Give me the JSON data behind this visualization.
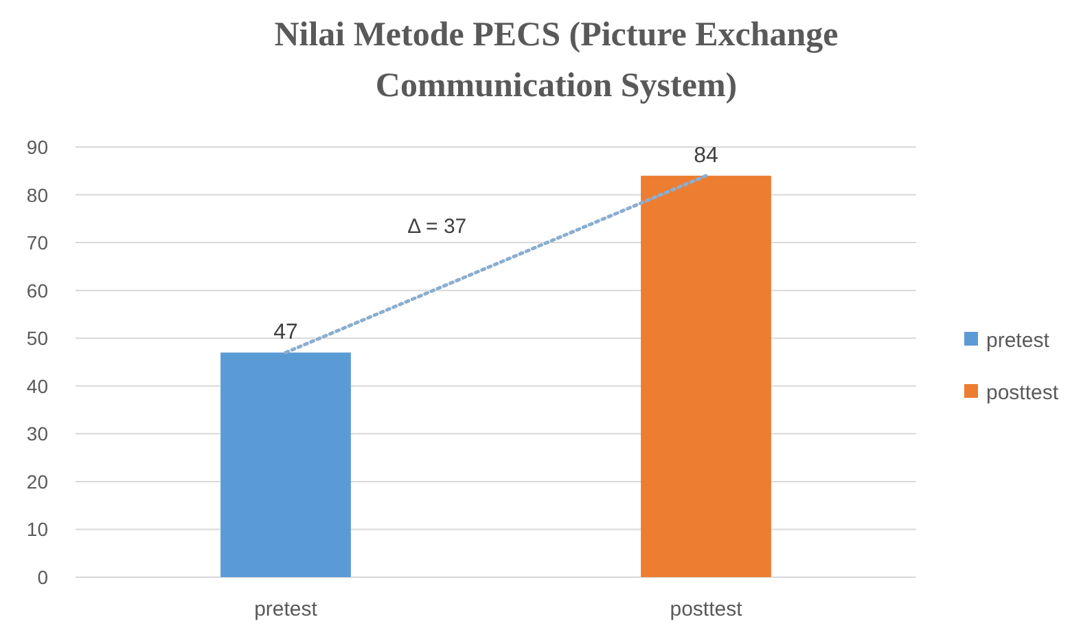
{
  "chart_data": {
    "type": "bar",
    "title": "Nilai Metode PECS (Picture Exchange Communication System)",
    "categories": [
      "pretest",
      "posttest"
    ],
    "stacked": true,
    "series": [
      {
        "name": "pretest",
        "color": "#5b9bd5",
        "values": [
          47,
          null
        ],
        "value_labels": [
          "47",
          null
        ]
      },
      {
        "name": "posttest",
        "color": "#ed7d31",
        "values": [
          null,
          84
        ],
        "value_labels": [
          null,
          "84"
        ]
      },
      {
        "type": "line",
        "values": [
          47,
          84
        ],
        "color": "#8aaed0",
        "line_style": "dotted",
        "marker": "none"
      }
    ],
    "ylim": [
      0,
      90
    ],
    "yticks": [
      0,
      10,
      20,
      30,
      40,
      50,
      60,
      70,
      80,
      90
    ],
    "grid": "y",
    "legend": "right",
    "annotations": [
      "Δ = 37"
    ]
  }
}
